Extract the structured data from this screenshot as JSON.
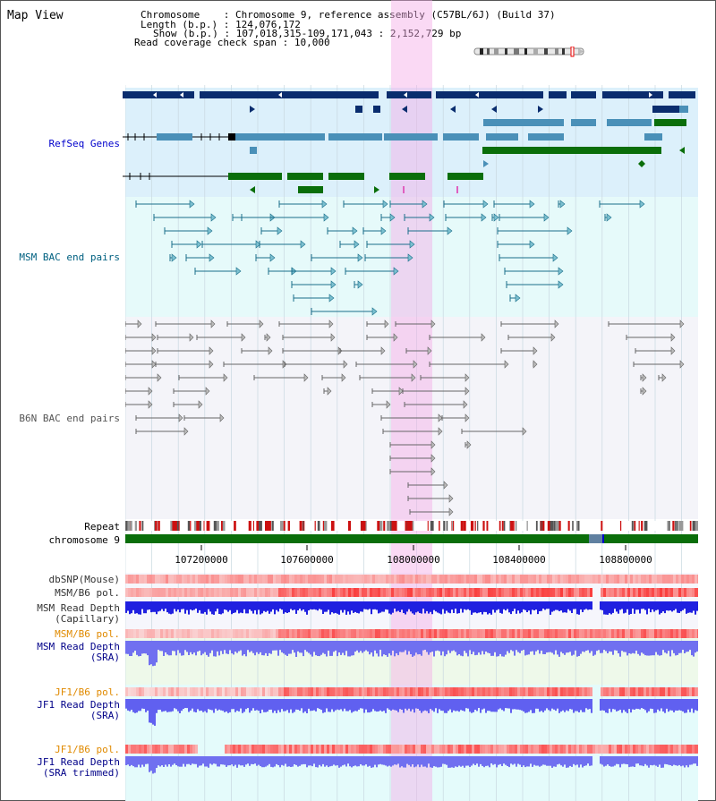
{
  "title": "Map View",
  "header": {
    "chromosome_key": "Chromosome",
    "chromosome_value": "Chromosome 9, reference assembly (C57BL/6J) (Build 37)",
    "length_key": "Length (b.p.)",
    "length_value": "124,076,172",
    "show_key": "Show (b.p.)",
    "show_value": "107,018,315-109,171,043 : 2,152,729 bp",
    "coverage_key": "Read coverage check span",
    "coverage_value": "10,000"
  },
  "tracks": {
    "refseq": "RefSeq Genes",
    "msm_bac": "MSM BAC end pairs",
    "b6n_bac": "B6N BAC end pairs",
    "repeat": "Repeat",
    "chromosome": "chromosome 9",
    "dbsnp": "dbSNP(Mouse)",
    "msm_b6_pol_1": "MSM/B6 pol.",
    "msm_depth_cap_1": "MSM Read Depth",
    "msm_depth_cap_2": "(Capillary)",
    "msm_b6_pol_2": "MSM/B6 pol.",
    "msm_depth_sra_1": "MSM Read Depth",
    "msm_depth_sra_2": "(SRA)",
    "jf1_b6_pol_1": "JF1/B6 pol.",
    "jf1_depth_sra_1": "JF1 Read Depth",
    "jf1_depth_sra_2": "(SRA)",
    "jf1_b6_pol_2": "JF1/B6 pol.",
    "jf1_depth_trim_1": "JF1 Read Depth",
    "jf1_depth_trim_2": "(SRA trimmed)"
  },
  "axis_ticks": [
    "107200000",
    "107600000",
    "108000000",
    "108400000",
    "108800000"
  ],
  "colors": {
    "highlight": "#f9d6f3",
    "refseq_bg": "#dcf0fb",
    "navy": "#0a2d6e",
    "steel": "#4a90b8",
    "green": "#0a6e0a",
    "depth": "#2020e0",
    "depth_light": "#7070f0"
  }
}
